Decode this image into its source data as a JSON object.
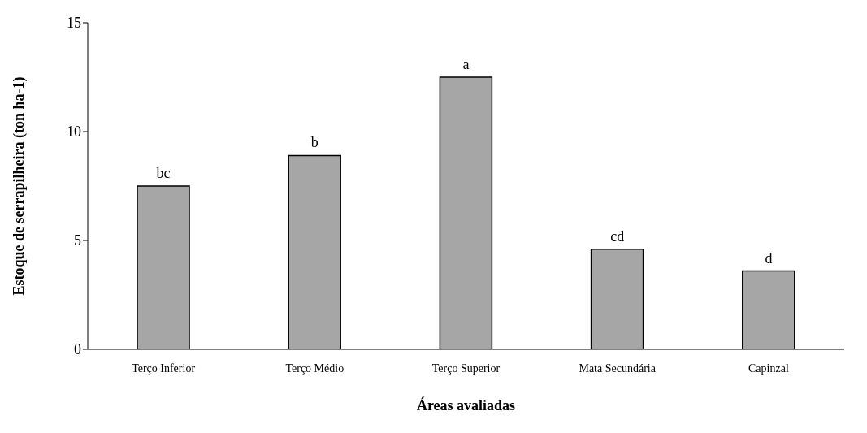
{
  "chart_data": {
    "type": "bar",
    "xlabel": "Áreas avaliadas",
    "ylabel": "Estoque de serrapilheira (ton ha-1)",
    "categories": [
      "Terço Inferior",
      "Terço Médio",
      "Terço Superior",
      "Mata Secundária",
      "Capinzal"
    ],
    "values": [
      7.5,
      8.9,
      12.5,
      4.6,
      3.6
    ],
    "color": "#a6a6a6",
    "ylim": [
      0,
      15
    ],
    "yticks": [
      0,
      5,
      10,
      15
    ],
    "grid": false,
    "legend": false,
    "annotations": [
      {
        "text": "bc",
        "x": "Terço Inferior",
        "y": 7.5
      },
      {
        "text": "b",
        "x": "Terço Médio",
        "y": 8.9
      },
      {
        "text": "a",
        "x": "Terço Superior",
        "y": 12.5
      },
      {
        "text": "cd",
        "x": "Mata Secundária",
        "y": 4.6
      },
      {
        "text": "d",
        "x": "Capinzal",
        "y": 3.6
      }
    ]
  }
}
